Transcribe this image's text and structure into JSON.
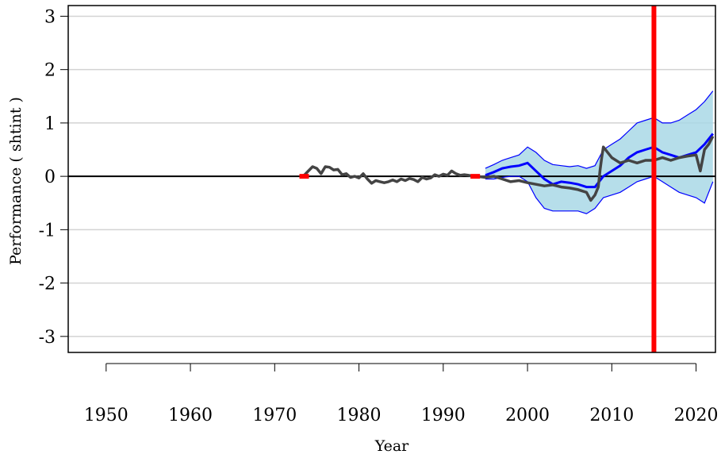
{
  "chart_data": {
    "type": "line",
    "title": "",
    "xlabel": "Year",
    "ylabel": "Performance ( shtint )",
    "xlim": [
      1945.5,
      2022.3
    ],
    "ylim": [
      -3.3,
      3.2
    ],
    "x_ticks": [
      1950,
      1960,
      1970,
      1980,
      1990,
      2000,
      2010,
      2020
    ],
    "y_ticks": [
      3,
      2,
      1,
      0,
      -1,
      -2,
      -3
    ],
    "grid": "horizontal",
    "reference_line_y": 0,
    "vertical_marker_x": 2015,
    "colors": {
      "performance": "#444444",
      "forecast": "#0000ff",
      "band_fill": "#a9d8e6",
      "marker": "#ff0000",
      "grid": "#d3d3d3"
    },
    "series": [
      {
        "role": "performance",
        "x": [
          1973.0,
          1973.5,
          1974.0,
          1974.5,
          1975.0,
          1975.5,
          1976.0,
          1976.5,
          1977.0,
          1977.5,
          1978.0,
          1978.5,
          1979.0,
          1979.5,
          1980.0,
          1980.5,
          1981.0,
          1981.5,
          1982.0,
          1982.5,
          1983.0,
          1983.5,
          1984.0,
          1984.5,
          1985.0,
          1985.5,
          1986.0,
          1986.5,
          1987.0,
          1987.5,
          1988.0,
          1988.5,
          1989.0,
          1989.5,
          1990.0,
          1990.5,
          1991.0,
          1991.5,
          1992.0,
          1992.5,
          1993.0,
          1993.5,
          1994.0,
          1995.0,
          1996.0,
          1997.0,
          1998.0,
          1999.0,
          2000.0,
          2001.0,
          2002.0,
          2003.0,
          2004.0,
          2005.0,
          2006.0,
          2007.0,
          2007.5,
          2008.0,
          2008.4,
          2008.6,
          2008.8,
          2009.0,
          2009.5,
          2010.0,
          2011.0,
          2012.0,
          2013.0,
          2014.0,
          2015.0,
          2016.0,
          2017.0,
          2018.0,
          2019.0,
          2020.0,
          2020.5,
          2021.0,
          2021.5,
          2022.0
        ],
        "y": [
          0.0,
          0.02,
          0.1,
          0.18,
          0.15,
          0.05,
          0.18,
          0.17,
          0.12,
          0.13,
          0.03,
          0.05,
          -0.02,
          0.0,
          -0.03,
          0.05,
          -0.05,
          -0.13,
          -0.08,
          -0.1,
          -0.12,
          -0.1,
          -0.07,
          -0.1,
          -0.05,
          -0.08,
          -0.04,
          -0.06,
          -0.1,
          -0.02,
          -0.05,
          -0.03,
          0.03,
          0.0,
          0.04,
          0.02,
          0.1,
          0.05,
          0.02,
          0.03,
          0.02,
          0.0,
          0.0,
          -0.02,
          0.0,
          -0.05,
          -0.1,
          -0.08,
          -0.12,
          -0.15,
          -0.18,
          -0.16,
          -0.2,
          -0.22,
          -0.25,
          -0.3,
          -0.45,
          -0.35,
          -0.2,
          0.1,
          0.35,
          0.55,
          0.45,
          0.35,
          0.25,
          0.3,
          0.25,
          0.3,
          0.3,
          0.35,
          0.3,
          0.35,
          0.38,
          0.4,
          0.1,
          0.5,
          0.6,
          0.75
        ]
      },
      {
        "role": "forecast",
        "x": [
          1995.0,
          1996.0,
          1997.0,
          1998.0,
          1999.0,
          2000.0,
          2001.0,
          2002.0,
          2003.0,
          2004.0,
          2005.0,
          2006.0,
          2007.0,
          2008.0,
          2009.0,
          2010.0,
          2011.0,
          2012.0,
          2013.0,
          2014.0,
          2015.0,
          2016.0,
          2017.0,
          2018.0,
          2019.0,
          2020.0,
          2021.0,
          2022.0
        ],
        "y": [
          0.02,
          0.08,
          0.15,
          0.18,
          0.2,
          0.25,
          0.1,
          -0.05,
          -0.15,
          -0.1,
          -0.12,
          -0.15,
          -0.2,
          -0.2,
          0.0,
          0.1,
          0.2,
          0.35,
          0.45,
          0.5,
          0.55,
          0.45,
          0.4,
          0.35,
          0.4,
          0.45,
          0.6,
          0.8
        ]
      },
      {
        "role": "band-upper",
        "x": [
          1995.0,
          1996.0,
          1997.0,
          1998.0,
          1999.0,
          2000.0,
          2001.0,
          2002.0,
          2003.0,
          2004.0,
          2005.0,
          2006.0,
          2007.0,
          2008.0,
          2009.0,
          2010.0,
          2011.0,
          2012.0,
          2013.0,
          2014.0,
          2015.0,
          2016.0,
          2017.0,
          2018.0,
          2019.0,
          2020.0,
          2021.0,
          2022.0
        ],
        "y": [
          0.15,
          0.22,
          0.3,
          0.35,
          0.4,
          0.55,
          0.45,
          0.3,
          0.22,
          0.2,
          0.18,
          0.2,
          0.15,
          0.2,
          0.5,
          0.6,
          0.7,
          0.85,
          1.0,
          1.05,
          1.1,
          1.0,
          1.0,
          1.05,
          1.15,
          1.25,
          1.4,
          1.6
        ]
      },
      {
        "role": "band-lower",
        "x": [
          1995.0,
          1996.0,
          1997.0,
          1998.0,
          1999.0,
          2000.0,
          2001.0,
          2002.0,
          2003.0,
          2004.0,
          2005.0,
          2006.0,
          2007.0,
          2008.0,
          2009.0,
          2010.0,
          2011.0,
          2012.0,
          2013.0,
          2014.0,
          2015.0,
          2016.0,
          2017.0,
          2018.0,
          2019.0,
          2020.0,
          2021.0,
          2022.0
        ],
        "y": [
          -0.05,
          -0.05,
          -0.02,
          0.0,
          0.0,
          -0.1,
          -0.4,
          -0.6,
          -0.65,
          -0.65,
          -0.65,
          -0.65,
          -0.7,
          -0.6,
          -0.4,
          -0.35,
          -0.3,
          -0.2,
          -0.1,
          -0.05,
          0.0,
          -0.1,
          -0.2,
          -0.3,
          -0.35,
          -0.4,
          -0.5,
          -0.1
        ]
      }
    ],
    "red_markers_x": [
      1973.5,
      1993.8
    ]
  }
}
